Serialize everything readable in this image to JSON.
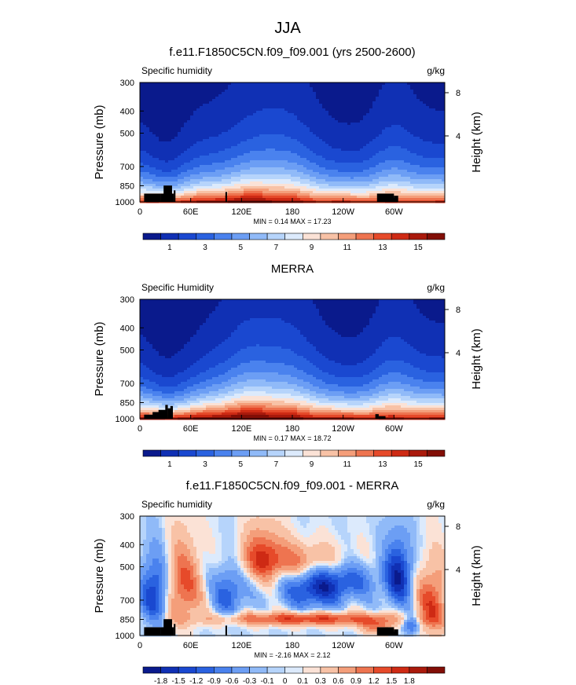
{
  "figure_title": "JJA",
  "chart_data": [
    {
      "type": "heatmap",
      "title": "f.e11.F1850C5CN.f09_f09.001 (yrs 2500-2600)",
      "left_label": "Specific humidity",
      "units": "g/kg",
      "ylabel": "Pressure (mb)",
      "ylabel_right": "Height (km)",
      "xticks": [
        "0",
        "60E",
        "120E",
        "180",
        "120W",
        "60W"
      ],
      "yticks": [
        "300",
        "400",
        "500",
        "700",
        "850",
        "1000"
      ],
      "right_ticks": [
        "8",
        "4"
      ],
      "stats": "MIN =   0.14  MAX =  17.23",
      "colorbar_labels": [
        "1",
        "3",
        "5",
        "7",
        "9",
        "11",
        "13",
        "15"
      ],
      "levels": [
        0,
        1,
        2,
        3,
        4,
        5,
        6,
        7,
        8,
        9,
        10,
        11,
        12,
        13,
        14,
        15,
        16
      ],
      "min": 0.14,
      "max": 17.23
    },
    {
      "type": "heatmap",
      "title": "MERRA",
      "left_label": "Specific Humidity",
      "units": "g/kg",
      "ylabel": "Pressure (mb)",
      "ylabel_right": "Height (km)",
      "xticks": [
        "0",
        "60E",
        "120E",
        "180",
        "120W",
        "60W"
      ],
      "yticks": [
        "300",
        "400",
        "500",
        "700",
        "850",
        "1000"
      ],
      "right_ticks": [
        "8",
        "4"
      ],
      "stats": "MIN =   0.17  MAX =  18.72",
      "colorbar_labels": [
        "1",
        "3",
        "5",
        "7",
        "9",
        "11",
        "13",
        "15"
      ],
      "levels": [
        0,
        1,
        2,
        3,
        4,
        5,
        6,
        7,
        8,
        9,
        10,
        11,
        12,
        13,
        14,
        15,
        16
      ],
      "min": 0.17,
      "max": 18.72
    },
    {
      "type": "heatmap",
      "title": "f.e11.F1850C5CN.f09_f09.001 - MERRA",
      "left_label": "Specific humidity",
      "units": "g/kg",
      "ylabel": "Pressure (mb)",
      "ylabel_right": "Height (km)",
      "xticks": [
        "0",
        "60E",
        "120E",
        "180",
        "120W",
        "60W"
      ],
      "yticks": [
        "300",
        "400",
        "500",
        "700",
        "850",
        "1000"
      ],
      "right_ticks": [
        "8",
        "4"
      ],
      "stats": "MIN =  -2.16  MAX =   2.12",
      "colorbar_labels": [
        "-1.8",
        "-1.5",
        "-1.2",
        "-0.9",
        "-0.6",
        "-0.3",
        "-0.1",
        "0",
        "0.1",
        "0.3",
        "0.6",
        "0.9",
        "1.2",
        "1.5",
        "1.8"
      ],
      "levels": [
        -2.1,
        -1.8,
        -1.5,
        -1.2,
        -0.9,
        -0.6,
        -0.3,
        -0.1,
        0,
        0.1,
        0.3,
        0.6,
        0.9,
        1.2,
        1.5,
        1.8,
        2.1
      ],
      "min": -2.16,
      "max": 2.12
    }
  ],
  "colors": {
    "palette": [
      "#0a1a8c",
      "#1030b4",
      "#1a48d0",
      "#2a62e0",
      "#4a82ee",
      "#6c9ef4",
      "#90baf8",
      "#b6d4fb",
      "#dceafc",
      "#fbe2d6",
      "#f8c2a6",
      "#f49e7a",
      "#ee7450",
      "#e64a2a",
      "#ce2a14",
      "#aa1a0c",
      "#820e06"
    ],
    "topography": "#000000"
  }
}
